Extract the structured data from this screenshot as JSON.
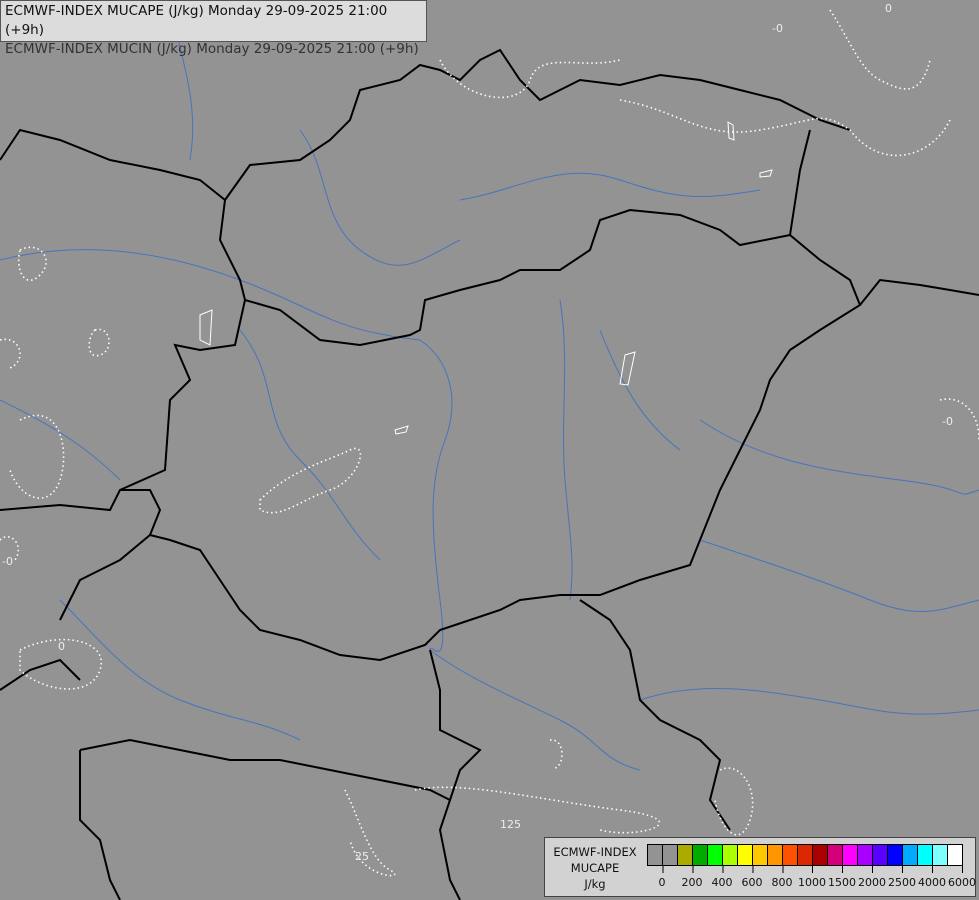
{
  "header": {
    "line1": "ECMWF-INDEX MUCAPE (J/kg) Monday 29-09-2025 21:00 (+9h)",
    "line2": "ECMWF-INDEX MUCIN (J/kg) Monday 29-09-2025 21:00 (+9h)"
  },
  "legend": {
    "title_line1": "ECMWF-INDEX",
    "title_line2": "MUCAPE",
    "unit": "J/kg",
    "colors": [
      "#939393",
      "#939393",
      "#aaaa00",
      "#00aa00",
      "#00ff00",
      "#aaff00",
      "#ffff00",
      "#ffc800",
      "#ff9600",
      "#ff5000",
      "#dc2800",
      "#aa0000",
      "#d4007a",
      "#ff00ff",
      "#aa00ff",
      "#5a00ff",
      "#0000ff",
      "#00aaff",
      "#00ffff",
      "#7fffff",
      "#ffffff"
    ],
    "ticks": [
      "0",
      "200",
      "400",
      "600",
      "800",
      "1000",
      "1500",
      "2000",
      "2500",
      "4000",
      "6000"
    ]
  },
  "contour_labels": [
    "0",
    "-0",
    "-0",
    "-0",
    "0",
    "125",
    "25"
  ],
  "colors": {
    "background": "#939393",
    "borders": "#000000",
    "rivers": "#3a6fc4",
    "cin_contours": "#ffffff"
  }
}
